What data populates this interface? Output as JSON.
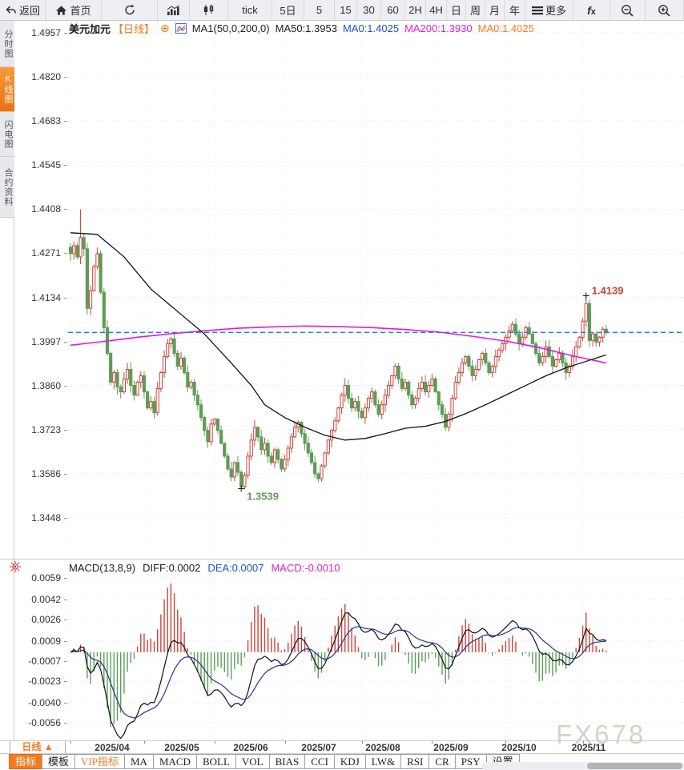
{
  "toolbar": {
    "items": [
      {
        "id": "back",
        "icon": "back-icon",
        "label": "返回"
      },
      {
        "id": "home",
        "icon": "home-icon",
        "label": "首页"
      },
      {
        "id": "refresh",
        "icon": "refresh-icon",
        "label": ""
      },
      {
        "id": "bar-chart",
        "icon": "bar-chart-icon",
        "label": ""
      },
      {
        "id": "candle-chart",
        "icon": "candlestick-icon",
        "label": ""
      },
      {
        "id": "tick",
        "icon": "",
        "label": "tick"
      },
      {
        "id": "5d",
        "icon": "",
        "label": "5日"
      },
      {
        "id": "m5",
        "icon": "",
        "label": "5"
      },
      {
        "id": "m15",
        "icon": "",
        "label": "15"
      },
      {
        "id": "m30",
        "icon": "",
        "label": "30"
      },
      {
        "id": "m60",
        "icon": "",
        "label": "60"
      },
      {
        "id": "h2",
        "icon": "",
        "label": "2H"
      },
      {
        "id": "h4",
        "icon": "",
        "label": "4H"
      },
      {
        "id": "day",
        "icon": "",
        "label": "日"
      },
      {
        "id": "week",
        "icon": "",
        "label": "周"
      },
      {
        "id": "month",
        "icon": "",
        "label": "月"
      },
      {
        "id": "year",
        "icon": "",
        "label": "年"
      },
      {
        "id": "more",
        "icon": "menu-icon",
        "label": "更多"
      },
      {
        "id": "fx",
        "icon": "fx-icon",
        "label": ""
      },
      {
        "id": "zoom-out",
        "icon": "zoom-out-icon",
        "label": ""
      },
      {
        "id": "zoom-in",
        "icon": "zoom-in-icon",
        "label": ""
      }
    ]
  },
  "sidebar": {
    "items": [
      {
        "label": "分时图",
        "active": false
      },
      {
        "label": "K线图",
        "active": true
      },
      {
        "label": "闪电图",
        "active": false
      },
      {
        "label": "合约资料",
        "active": false
      }
    ]
  },
  "chart_header": {
    "symbol": "美元加元",
    "period": "【日线】",
    "ma_settings": "MA1(50,0,200,0)",
    "ma50": "MA50:1.3953",
    "ma0_blue": "MA0:1.4025",
    "ma200": "MA200:1.3930",
    "ma0_orange": "MA0:1.4025"
  },
  "macd_header": {
    "title": "MACD(13,8,9)",
    "diff": "DIFF:0.0002",
    "dea": "DEA:0.0007",
    "macd": "MACD:-0.0010"
  },
  "bottom": {
    "period_button": "日线 ▲",
    "tabs": [
      {
        "label": "指标",
        "state": "selected"
      },
      {
        "label": "模板",
        "state": ""
      },
      {
        "label": "VIP指标",
        "state": "vip"
      },
      {
        "label": "MA",
        "state": ""
      },
      {
        "label": "MACD",
        "state": ""
      },
      {
        "label": "BOLL",
        "state": ""
      },
      {
        "label": "VOL",
        "state": ""
      },
      {
        "label": "BIAS",
        "state": ""
      },
      {
        "label": "CCI",
        "state": ""
      },
      {
        "label": "KDJ",
        "state": ""
      },
      {
        "label": "LW&",
        "state": ""
      },
      {
        "label": "RSI",
        "state": ""
      },
      {
        "label": "CR",
        "state": ""
      },
      {
        "label": "PSY",
        "state": ""
      },
      {
        "label": "设置",
        "state": ""
      }
    ]
  },
  "watermark": "FX678",
  "colors": {
    "up_candle": "#c9453b",
    "down_candle": "#5e9c57",
    "ma50_line": "#111111",
    "ma200_line": "#e616e0",
    "price_dashed_line": "#2277dd",
    "diff_line": "#111111",
    "dea_line": "#1b3a8c",
    "accent_orange": "#f57a1e",
    "high_label": "#cf3f2f",
    "low_label": "#5f9c58"
  },
  "chart_data": {
    "type": "candlestick",
    "title": "美元加元 日线 (USD/CAD daily with MA50/MA200 and MACD)",
    "main": {
      "y_ticks": [
        1.4957,
        1.482,
        1.4683,
        1.4545,
        1.4408,
        1.4271,
        1.4134,
        1.3997,
        1.386,
        1.3723,
        1.3586,
        1.3448
      ],
      "x_labels": [
        "2025/04",
        "2025/05",
        "2025/06",
        "2025/07",
        "2025/08",
        "2025/09",
        "2025/10",
        "2025/11"
      ],
      "month_start_days": [
        0,
        22,
        43,
        64,
        87,
        108,
        130,
        153
      ],
      "current_price": 1.4025,
      "closes": [
        1.427,
        1.4295,
        1.426,
        1.432,
        1.4285,
        1.41,
        1.4155,
        1.423,
        1.427,
        1.415,
        1.404,
        1.396,
        1.387,
        1.39,
        1.3855,
        1.384,
        1.388,
        1.391,
        1.386,
        1.383,
        1.387,
        1.389,
        1.384,
        1.379,
        1.381,
        1.3775,
        1.385,
        1.39,
        1.395,
        1.399,
        1.4005,
        1.396,
        1.392,
        1.3945,
        1.39,
        1.3855,
        1.387,
        1.383,
        1.38,
        1.376,
        1.372,
        1.3685,
        1.374,
        1.3755,
        1.372,
        1.368,
        1.364,
        1.36,
        1.3575,
        1.362,
        1.359,
        1.3545,
        1.358,
        1.364,
        1.369,
        1.373,
        1.37,
        1.366,
        1.368,
        1.364,
        1.362,
        1.366,
        1.363,
        1.36,
        1.363,
        1.3665,
        1.37,
        1.373,
        1.3745,
        1.371,
        1.368,
        1.365,
        1.362,
        1.3585,
        1.357,
        1.361,
        1.365,
        1.369,
        1.372,
        1.375,
        1.379,
        1.383,
        1.386,
        1.382,
        1.379,
        1.381,
        1.378,
        1.376,
        1.379,
        1.382,
        1.384,
        1.38,
        1.377,
        1.38,
        1.383,
        1.386,
        1.389,
        1.392,
        1.388,
        1.385,
        1.387,
        1.383,
        1.38,
        1.382,
        1.385,
        1.387,
        1.384,
        1.386,
        1.388,
        1.384,
        1.38,
        1.377,
        1.373,
        1.377,
        1.382,
        1.387,
        1.39,
        1.393,
        1.395,
        1.392,
        1.389,
        1.391,
        1.394,
        1.396,
        1.393,
        1.39,
        1.392,
        1.395,
        1.397,
        1.399,
        1.401,
        1.403,
        1.405,
        1.402,
        1.399,
        1.401,
        1.404,
        1.402,
        1.399,
        1.396,
        1.393,
        1.395,
        1.398,
        1.395,
        1.392,
        1.394,
        1.396,
        1.393,
        1.39,
        1.392,
        1.395,
        1.398,
        1.401,
        1.406,
        1.4115,
        1.4,
        1.402,
        1.3995,
        1.401,
        1.4035,
        1.4025
      ],
      "extremes": [
        {
          "index": 3,
          "side": "high",
          "value": 1.4408,
          "label": ""
        },
        {
          "index": 51,
          "side": "low",
          "value": 1.3539,
          "label": "1.3539",
          "color": "#5f9c58"
        },
        {
          "index": 154,
          "side": "high",
          "value": 1.4139,
          "label": "1.4139",
          "color": "#cf3f2f"
        }
      ],
      "ma50": [
        [
          0,
          1.4335
        ],
        [
          8,
          1.433
        ],
        [
          16,
          1.426
        ],
        [
          24,
          1.416
        ],
        [
          32,
          1.409
        ],
        [
          40,
          1.402
        ],
        [
          48,
          1.393
        ],
        [
          54,
          1.386
        ],
        [
          58,
          1.38
        ],
        [
          64,
          1.376
        ],
        [
          70,
          1.373
        ],
        [
          76,
          1.3705
        ],
        [
          82,
          1.369
        ],
        [
          88,
          1.3695
        ],
        [
          94,
          1.371
        ],
        [
          100,
          1.3727
        ],
        [
          106,
          1.3733
        ],
        [
          112,
          1.3748
        ],
        [
          118,
          1.3772
        ],
        [
          124,
          1.38
        ],
        [
          130,
          1.383
        ],
        [
          136,
          1.386
        ],
        [
          142,
          1.389
        ],
        [
          148,
          1.3915
        ],
        [
          154,
          1.3935
        ],
        [
          160,
          1.3955
        ]
      ],
      "ma200": [
        [
          0,
          1.3985
        ],
        [
          10,
          1.3997
        ],
        [
          20,
          1.401
        ],
        [
          30,
          1.4021
        ],
        [
          40,
          1.403
        ],
        [
          50,
          1.4038
        ],
        [
          60,
          1.4042
        ],
        [
          70,
          1.4045
        ],
        [
          80,
          1.4043
        ],
        [
          90,
          1.404
        ],
        [
          100,
          1.4034
        ],
        [
          110,
          1.4026
        ],
        [
          120,
          1.4013
        ],
        [
          130,
          1.3998
        ],
        [
          140,
          1.3978
        ],
        [
          150,
          1.3952
        ],
        [
          155,
          1.3941
        ],
        [
          160,
          1.393
        ]
      ]
    },
    "macd": {
      "params": [
        13,
        8,
        9
      ],
      "y_ticks": [
        0.0059,
        0.0042,
        0.0026,
        0.0009,
        -0.0007,
        -0.0023,
        -0.004,
        -0.0056
      ],
      "diff_current": 0.0002,
      "dea_current": 0.0007,
      "hist_current": -0.001
    }
  }
}
